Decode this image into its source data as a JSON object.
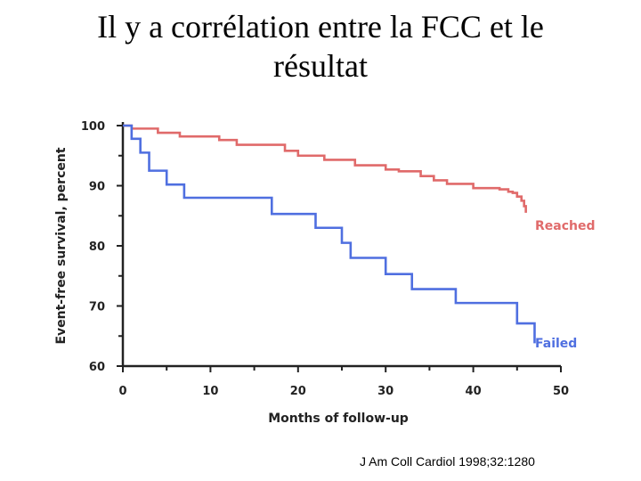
{
  "slide": {
    "title_line1": "Il y a corrélation entre la FCC et le",
    "title_line2": "résultat",
    "citation": "J Am Coll Cardiol 1998;32:1280"
  },
  "colors": {
    "reached": "#e06a6a",
    "failed": "#4f6fe0",
    "axis": "#222222"
  },
  "chart_data": {
    "type": "line",
    "step": true,
    "title": "",
    "xlabel": "Months of follow-up",
    "ylabel": "Event-free survival, percent",
    "xlim": [
      0,
      50
    ],
    "ylim": [
      60,
      100
    ],
    "xticks": [
      0,
      10,
      20,
      30,
      40,
      50
    ],
    "yticks": [
      60,
      70,
      80,
      90,
      100
    ],
    "series": [
      {
        "name": "Reached",
        "color": "#e06a6a",
        "x": [
          0,
          1,
          4,
          6.5,
          11,
          13,
          18.5,
          20,
          23,
          26.5,
          30,
          31.5,
          34,
          35.5,
          37,
          40,
          43,
          44,
          44.5,
          45,
          45.5,
          45.8,
          46
        ],
        "y": [
          100,
          99.5,
          98.8,
          98.2,
          97.6,
          96.8,
          95.8,
          95,
          94.3,
          93.4,
          92.7,
          92.4,
          91.6,
          90.9,
          90.3,
          89.6,
          89.4,
          89,
          88.8,
          88.2,
          87.5,
          86.6,
          85.5
        ]
      },
      {
        "name": "Failed",
        "color": "#4f6fe0",
        "x": [
          0,
          1,
          2,
          3,
          5,
          7,
          17,
          22,
          25,
          26,
          30,
          33,
          38,
          45,
          47
        ],
        "y": [
          100,
          97.8,
          95.5,
          92.5,
          90.2,
          88,
          85.3,
          83,
          80.5,
          78,
          75.3,
          72.8,
          70.5,
          67.1,
          63.8
        ]
      }
    ]
  }
}
